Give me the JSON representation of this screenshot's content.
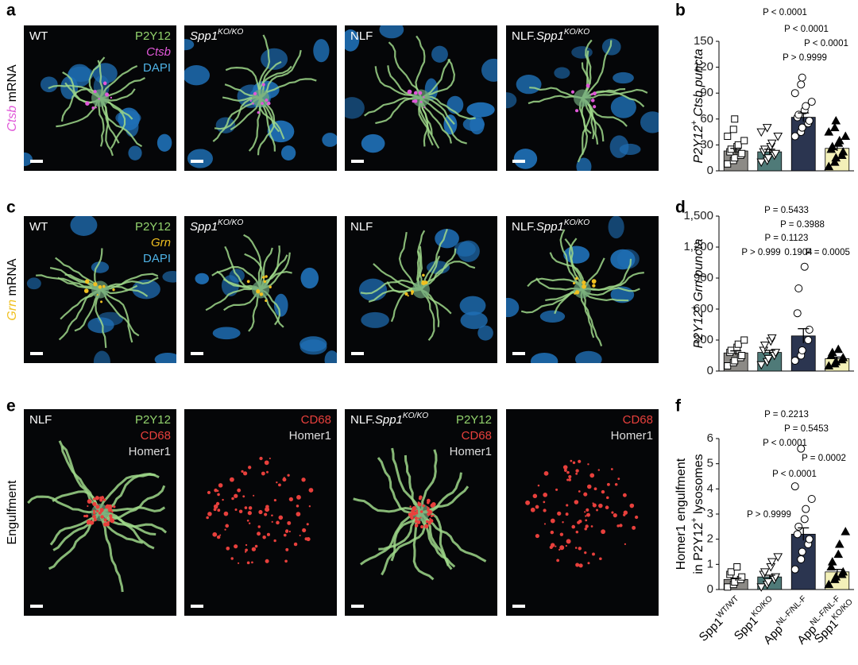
{
  "panels": [
    {
      "letter": "a",
      "row_label": [
        {
          "text": "Ctsb",
          "italic": true,
          "color": "#e058d8"
        },
        {
          "text": " mRNA"
        }
      ],
      "images": [
        {
          "label": [
            {
              "text": "WT"
            }
          ],
          "legend": [
            {
              "text": "P2Y12",
              "color": "#93d36d"
            },
            {
              "text": "Ctsb",
              "color": "#e058d8",
              "italic": true
            },
            {
              "text": "DAPI",
              "color": "#4fb3e6"
            }
          ]
        },
        {
          "label": [
            {
              "text": "Spp1",
              "italic": true
            },
            {
              "text": "KO/KO",
              "italic": true,
              "sup": true
            }
          ]
        },
        {
          "label": [
            {
              "text": "NLF"
            }
          ]
        },
        {
          "label": [
            {
              "text": "NLF."
            },
            {
              "text": "Spp1",
              "italic": true
            },
            {
              "text": "KO/KO",
              "italic": true,
              "sup": true
            }
          ]
        }
      ]
    },
    {
      "letter": "c",
      "row_label": [
        {
          "text": "Grn",
          "italic": true,
          "color": "#f0c020"
        },
        {
          "text": " mRNA"
        }
      ],
      "images": [
        {
          "label": [
            {
              "text": "WT"
            }
          ],
          "legend": [
            {
              "text": "P2Y12",
              "color": "#93d36d"
            },
            {
              "text": "Grn",
              "color": "#f0c020",
              "italic": true
            },
            {
              "text": "DAPI",
              "color": "#4fb3e6"
            }
          ]
        },
        {
          "label": [
            {
              "text": "Spp1",
              "italic": true
            },
            {
              "text": "KO/KO",
              "italic": true,
              "sup": true
            }
          ]
        },
        {
          "label": [
            {
              "text": "NLF"
            }
          ]
        },
        {
          "label": [
            {
              "text": "NLF."
            },
            {
              "text": "Spp1",
              "italic": true
            },
            {
              "text": "KO/KO",
              "italic": true,
              "sup": true
            }
          ]
        }
      ]
    },
    {
      "letter": "e",
      "row_label": [
        {
          "text": "Engulfment"
        }
      ],
      "images": [
        {
          "label": [
            {
              "text": "NLF"
            }
          ],
          "legend": [
            {
              "text": "P2Y12",
              "color": "#93d36d"
            },
            {
              "text": "CD68",
              "color": "#e8403c"
            },
            {
              "text": "Homer1",
              "color": "#dddddd"
            }
          ]
        },
        {
          "legend": [
            {
              "text": "CD68",
              "color": "#e8403c"
            },
            {
              "text": "Homer1",
              "color": "#dddddd"
            }
          ]
        },
        {
          "label": [
            {
              "text": "NLF."
            },
            {
              "text": "Spp1",
              "italic": true
            },
            {
              "text": "KO/KO",
              "italic": true,
              "sup": true
            }
          ],
          "legend": [
            {
              "text": "P2Y12",
              "color": "#93d36d"
            },
            {
              "text": "CD68",
              "color": "#e8403c"
            },
            {
              "text": "Homer1",
              "color": "#dddddd"
            }
          ]
        },
        {
          "legend": [
            {
              "text": "CD68",
              "color": "#e8403c"
            },
            {
              "text": "Homer1",
              "color": "#dddddd"
            }
          ]
        }
      ]
    }
  ],
  "chart_data": [
    {
      "type": "bar",
      "letter": "b",
      "ylabel": [
        [
          {
            "text": "P2Y12",
            "italic": true
          },
          {
            "text": "+",
            "sup": true
          },
          {
            "text": " Ctsb puncta",
            "italic": true
          }
        ]
      ],
      "categories": [
        null,
        null,
        null,
        null
      ],
      "values": [
        23,
        22,
        62,
        26
      ],
      "errors": [
        3,
        3,
        5,
        3
      ],
      "colors": [
        "#8c8a86",
        "#4f7a78",
        "#2b3550",
        "#f3f0b8"
      ],
      "markers": [
        "square",
        "triangle-down",
        "circle",
        "triangle-up"
      ],
      "points": [
        [
          8,
          12,
          15,
          18,
          20,
          22,
          25,
          28,
          30,
          35,
          40,
          48,
          60
        ],
        [
          10,
          12,
          15,
          18,
          20,
          22,
          25,
          28,
          32,
          40,
          45,
          50
        ],
        [
          40,
          45,
          50,
          55,
          58,
          62,
          65,
          70,
          75,
          80,
          90,
          100,
          108
        ],
        [
          5,
          10,
          15,
          18,
          22,
          25,
          28,
          32,
          35,
          40,
          45,
          50,
          58
        ]
      ],
      "ylim": [
        0,
        150
      ],
      "yticks": [
        0,
        30,
        60,
        90,
        120,
        150
      ],
      "annotations": [
        "P < 0.0001",
        "P < 0.0001",
        "P < 0.0001",
        "P > 0.9999"
      ]
    },
    {
      "type": "bar",
      "letter": "d",
      "ylabel": [
        [
          {
            "text": "P2Y12",
            "italic": true
          },
          {
            "text": "+",
            "sup": true
          },
          {
            "text": " Grn puncta",
            "italic": true
          }
        ]
      ],
      "categories": [
        null,
        null,
        null,
        null
      ],
      "values": [
        175,
        180,
        340,
        120
      ],
      "errors": [
        20,
        20,
        70,
        15
      ],
      "colors": [
        "#8c8a86",
        "#4f7a78",
        "#2b3550",
        "#f3f0b8"
      ],
      "markers": [
        "square",
        "triangle-down",
        "circle",
        "triangle-up"
      ],
      "points": [
        [
          50,
          80,
          100,
          130,
          150,
          180,
          200,
          230,
          260,
          300
        ],
        [
          60,
          90,
          120,
          150,
          180,
          200,
          250,
          290,
          320
        ],
        [
          100,
          150,
          200,
          300,
          400,
          560,
          800,
          1010
        ],
        [
          50,
          70,
          90,
          110,
          130,
          150,
          180,
          210
        ]
      ],
      "ylim": [
        0,
        1500
      ],
      "yticks": [
        0,
        300,
        600,
        900,
        {
          "value": 1200,
          "label": "1,200"
        },
        {
          "value": 1500,
          "label": "1,500"
        }
      ],
      "annotations": [
        "P = 0.5433",
        "P = 0.3988",
        "P = 0.1123",
        "P > 0.999",
        "0.1904",
        "P = 0.0005"
      ]
    },
    {
      "type": "bar",
      "letter": "f",
      "ylabel": [
        [
          {
            "text": "Homer1 engulfment"
          }
        ],
        [
          {
            "text": "in P2Y12"
          },
          {
            "text": "+",
            "sup": true
          },
          {
            "text": " lysosomes"
          }
        ]
      ],
      "categories": [
        [
          [
            {
              "text": "Spp1"
            },
            {
              "text": "WT/WT",
              "sup": true
            }
          ]
        ],
        [
          [
            {
              "text": "Spp1"
            },
            {
              "text": "KO/KO",
              "sup": true
            }
          ]
        ],
        [
          [
            {
              "text": "App"
            },
            {
              "text": "NL-F/NL-F",
              "sup": true
            }
          ]
        ],
        [
          [
            {
              "text": "App"
            },
            {
              "text": "NL-F/NL-F",
              "sup": true
            }
          ],
          [
            {
              "text": "Spp1"
            },
            {
              "text": "KO/KO",
              "sup": true
            }
          ]
        ]
      ],
      "values": [
        0.4,
        0.5,
        2.2,
        0.7
      ],
      "errors": [
        0.05,
        0.07,
        0.25,
        0.1
      ],
      "colors": [
        "#8c8a86",
        "#4f7a78",
        "#2b3550",
        "#f3f0b8"
      ],
      "markers": [
        "square",
        "triangle-down",
        "circle",
        "triangle-up"
      ],
      "points": [
        [
          0.1,
          0.2,
          0.3,
          0.4,
          0.5,
          0.6,
          0.7,
          0.9
        ],
        [
          0.1,
          0.2,
          0.3,
          0.4,
          0.5,
          0.6,
          0.7,
          0.9,
          1.1,
          1.3
        ],
        [
          0.8,
          1.2,
          1.5,
          1.8,
          2.0,
          2.2,
          2.5,
          2.8,
          3.2,
          3.6,
          4.1,
          5.6
        ],
        [
          0.2,
          0.4,
          0.5,
          0.6,
          0.7,
          0.9,
          1.1,
          1.4,
          1.8,
          2.3
        ]
      ],
      "ylim": [
        0,
        6
      ],
      "yticks": [
        0,
        1,
        2,
        3,
        4,
        5,
        6
      ],
      "annotations": [
        "P = 0.2213",
        "P = 0.5453",
        "P < 0.0001",
        "P = 0.0002",
        "P < 0.0001",
        "P > 0.9999"
      ]
    }
  ]
}
